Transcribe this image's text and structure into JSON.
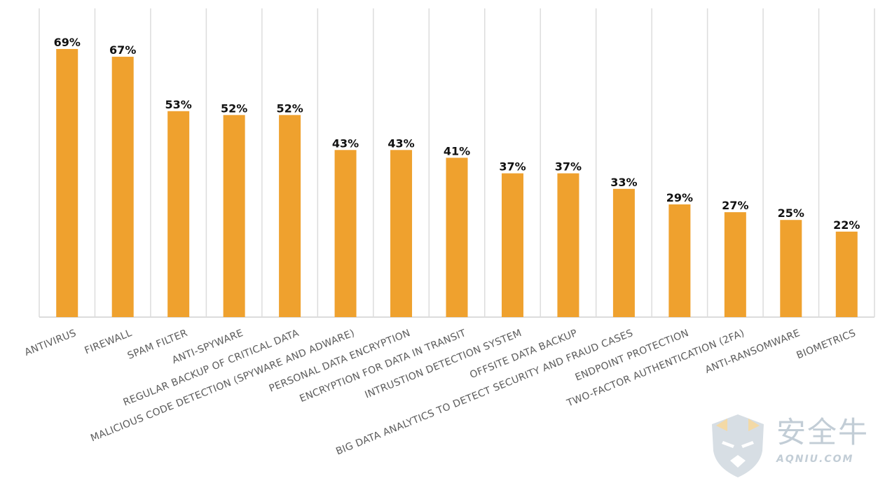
{
  "chart_data": {
    "type": "bar",
    "categories": [
      "ANTIVIRUS",
      "FIREWALL",
      "SPAM FILTER",
      "ANTI-SPYWARE",
      "REGULAR BACKUP OF CRITICAL DATA",
      "MALICIOUS CODE DETECTION (SPYWARE AND ADWARE)",
      "PERSONAL DATA ENCRYPTION",
      "ENCRYPTION FOR DATA IN TRANSIT",
      "INTRUSTION DETECTION SYSTEM",
      "OFFSITE DATA BACKUP",
      "BIG DATA ANALYTICS TO DETECT SECURITY AND FRAUD CASES",
      "ENDPOINT PROTECTION",
      "TWO-FACTOR AUTHENTICATION (2FA)",
      "ANTI-RANSOMWARE",
      "BIOMETRICS"
    ],
    "values": [
      69,
      67,
      53,
      52,
      52,
      43,
      43,
      41,
      37,
      37,
      33,
      29,
      27,
      25,
      22
    ],
    "value_labels": [
      "69%",
      "67%",
      "53%",
      "52%",
      "52%",
      "43%",
      "43%",
      "41%",
      "37%",
      "37%",
      "33%",
      "29%",
      "27%",
      "25%",
      "22%"
    ],
    "ylim": [
      0,
      78
    ],
    "grid": "vertical",
    "legend": "none",
    "bar_color": "#EFA12E",
    "grid_color": "#dcdcdc"
  },
  "watermark": {
    "cn": "安全牛",
    "en": "AQNIU.COM"
  }
}
